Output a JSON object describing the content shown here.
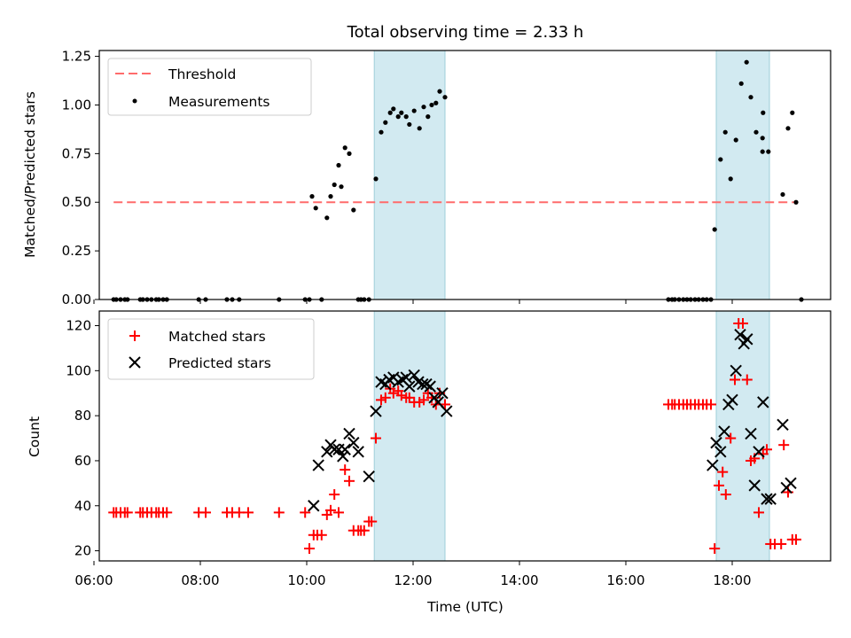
{
  "title": "Total observing time = 2.33 h",
  "colors": {
    "threshold": "#ff6b6b",
    "measurements": "#000000",
    "matched": "#ff0000",
    "predicted": "#000000",
    "shade": "#add8e6"
  },
  "chart_data": [
    {
      "type": "scatter",
      "ylabel": "Matched/Predicted stars",
      "xlabel": "",
      "xlim": [
        6.1,
        19.85
      ],
      "ylim": [
        0,
        1.28
      ],
      "yticks": [
        0.0,
        0.25,
        0.5,
        0.75,
        1.0,
        1.25
      ],
      "ytick_labels": [
        "0.00",
        "0.25",
        "0.50",
        "0.75",
        "1.00",
        "1.25"
      ],
      "grid": false,
      "legend_position": "upper-left",
      "legend": [
        "Threshold",
        "Measurements"
      ],
      "shaded_intervals": [
        [
          11.27,
          12.6
        ],
        [
          17.7,
          18.7
        ]
      ],
      "threshold": {
        "name": "Threshold",
        "y": 0.5,
        "x_range": [
          6.37,
          19.2
        ]
      },
      "series": [
        {
          "name": "Measurements",
          "x": [
            6.37,
            6.42,
            6.5,
            6.58,
            6.63,
            6.87,
            6.92,
            7.0,
            7.08,
            7.17,
            7.22,
            7.3,
            7.37,
            7.97,
            8.1,
            8.5,
            8.6,
            8.73,
            9.48,
            9.97,
            10.05,
            10.1,
            10.17,
            10.28,
            10.38,
            10.45,
            10.52,
            10.6,
            10.65,
            10.72,
            10.8,
            10.88,
            10.97,
            11.02,
            11.08,
            11.17,
            11.3,
            11.4,
            11.48,
            11.57,
            11.63,
            11.72,
            11.78,
            11.87,
            11.93,
            12.02,
            12.12,
            12.2,
            12.28,
            12.35,
            12.43,
            12.5,
            12.6,
            16.8,
            16.87,
            16.92,
            17.0,
            17.08,
            17.15,
            17.22,
            17.3,
            17.37,
            17.45,
            17.52,
            17.6,
            17.67,
            17.78,
            17.87,
            17.97,
            18.07,
            18.17,
            18.27,
            18.35,
            18.45,
            18.57,
            18.68,
            18.95,
            19.05,
            19.13,
            19.2
          ],
          "y": [
            0,
            0,
            0,
            0,
            0,
            0,
            0,
            0,
            0,
            0,
            0,
            0,
            0,
            0,
            0,
            0,
            0,
            0,
            0,
            0,
            0,
            0.53,
            0.47,
            0,
            0.42,
            0.53,
            0.59,
            0.69,
            0.58,
            0.78,
            0.75,
            0.46,
            0,
            0,
            0,
            0,
            0.62,
            0.86,
            0.91,
            0.96,
            0.98,
            0.94,
            0.96,
            0.94,
            0.9,
            0.97,
            0.88,
            0.99,
            0.94,
            1.0,
            1.01,
            1.07,
            1.04,
            0,
            0,
            0,
            0,
            0,
            0,
            0,
            0,
            0,
            0,
            0,
            0,
            0.36,
            0.72,
            0.86,
            0.62,
            0.82,
            1.11,
            1.22,
            1.04,
            0.86,
            0.83,
            0.76,
            0.54,
            0.88,
            0.96,
            0.5
          ]
        }
      ],
      "extra_points": [
        [
          18.58,
          0.96
        ],
        [
          18.57,
          0.76
        ],
        [
          19.3,
          0
        ]
      ]
    },
    {
      "type": "scatter",
      "ylabel": "Count",
      "xlabel": "Time (UTC)",
      "xlim": [
        6.1,
        19.85
      ],
      "ylim": [
        15.5,
        126.5
      ],
      "yticks": [
        20,
        40,
        60,
        80,
        100,
        120
      ],
      "ytick_labels": [
        "20",
        "40",
        "60",
        "80",
        "100",
        "120"
      ],
      "xticks": [
        6,
        8,
        10,
        12,
        14,
        16,
        18
      ],
      "xtick_labels": [
        "06:00",
        "08:00",
        "10:00",
        "12:00",
        "14:00",
        "16:00",
        "18:00"
      ],
      "grid": false,
      "legend_position": "upper-left",
      "legend": [
        "Matched stars",
        "Predicted stars"
      ],
      "shaded_intervals": [
        [
          11.27,
          12.6
        ],
        [
          17.7,
          18.7
        ]
      ],
      "series": [
        {
          "name": "Matched stars",
          "x": [
            6.37,
            6.42,
            6.5,
            6.58,
            6.63,
            6.87,
            6.92,
            7.0,
            7.08,
            7.17,
            7.22,
            7.3,
            7.37,
            7.97,
            8.1,
            8.5,
            8.6,
            8.73,
            8.9,
            9.48,
            9.97,
            10.05,
            10.13,
            10.2,
            10.28,
            10.38,
            10.45,
            10.52,
            10.6,
            10.72,
            10.8,
            10.88,
            10.97,
            11.02,
            11.08,
            11.17,
            11.22,
            11.3,
            11.4,
            11.48,
            11.57,
            11.63,
            11.72,
            11.78,
            11.87,
            11.93,
            12.02,
            12.12,
            12.2,
            12.28,
            12.35,
            12.43,
            12.5,
            12.6,
            16.8,
            16.87,
            16.92,
            17.0,
            17.08,
            17.15,
            17.22,
            17.3,
            17.37,
            17.45,
            17.52,
            17.6,
            17.67,
            17.75,
            17.82,
            17.88,
            17.97,
            18.05,
            18.12,
            18.2,
            18.28,
            18.35,
            18.42,
            18.5,
            18.58,
            18.65,
            18.72,
            18.8,
            18.92,
            18.97,
            19.05,
            19.13,
            19.2
          ],
          "y": [
            37,
            37,
            37,
            37,
            37,
            37,
            37,
            37,
            37,
            37,
            37,
            37,
            37,
            37,
            37,
            37,
            37,
            37,
            37,
            37,
            37,
            21,
            27,
            27,
            27,
            36,
            38,
            45,
            37,
            56,
            51,
            29,
            29,
            29,
            29,
            33,
            33,
            70,
            87,
            88,
            92,
            90,
            91,
            89,
            88,
            88,
            86,
            86,
            87,
            90,
            88,
            85,
            90,
            85,
            85,
            85,
            85,
            85,
            85,
            85,
            85,
            85,
            85,
            85,
            85,
            85,
            21,
            49,
            55,
            45,
            70,
            96,
            121,
            121,
            96,
            60,
            61,
            37,
            63,
            65,
            23,
            23,
            23,
            67,
            46,
            25,
            25
          ]
        },
        {
          "name": "Predicted stars",
          "x": [
            10.13,
            10.22,
            10.38,
            10.45,
            10.52,
            10.6,
            10.68,
            10.72,
            10.8,
            10.88,
            10.97,
            11.17,
            11.3,
            11.4,
            11.48,
            11.55,
            11.63,
            11.72,
            11.8,
            11.87,
            11.93,
            12.02,
            12.1,
            12.18,
            12.25,
            12.32,
            12.4,
            12.47,
            12.55,
            12.63,
            17.63,
            17.7,
            17.78,
            17.85,
            17.93,
            18.0,
            18.07,
            18.15,
            18.22,
            18.28,
            18.35,
            18.42,
            18.5,
            18.58,
            18.65,
            18.72,
            18.95,
            19.02,
            19.1
          ],
          "y": [
            40,
            58,
            64,
            67,
            65,
            65,
            62,
            65,
            72,
            68,
            64,
            53,
            82,
            95,
            94,
            96,
            97,
            95,
            96,
            97,
            93,
            98,
            95,
            94,
            94,
            93,
            88,
            86,
            90,
            82,
            58,
            68,
            64,
            73,
            85,
            87,
            100,
            116,
            112,
            114,
            72,
            49,
            64,
            86,
            43,
            43,
            76,
            48,
            50
          ]
        }
      ]
    }
  ]
}
